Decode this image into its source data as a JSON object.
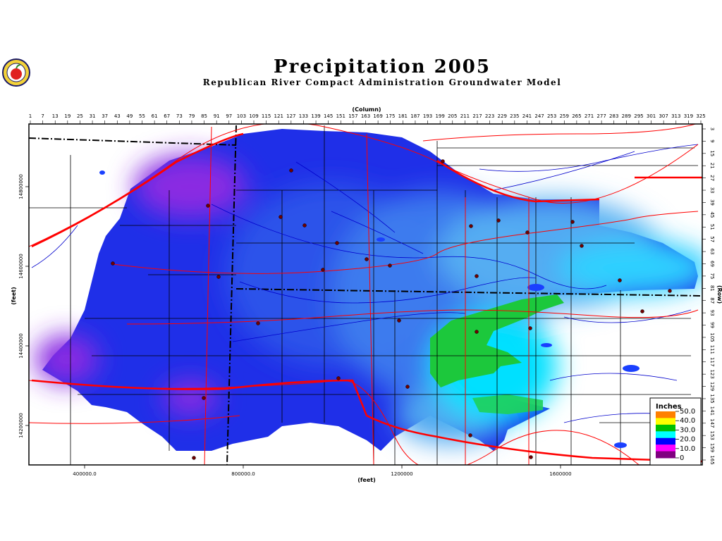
{
  "title": "Precipitation 2005",
  "subtitle": "Republican River Compact Administration Groundwater Model",
  "axes": {
    "column_label": "(Column)",
    "row_label": "(Row)",
    "x_feet_label": "(feet)",
    "y_feet_label": "(feet)",
    "column_ticks": [
      "1",
      "7",
      "13",
      "19",
      "25",
      "31",
      "37",
      "43",
      "49",
      "55",
      "61",
      "67",
      "73",
      "79",
      "85",
      "91",
      "97",
      "103",
      "109",
      "115",
      "121",
      "127",
      "133",
      "139",
      "145",
      "151",
      "157",
      "163",
      "169",
      "175",
      "181",
      "187",
      "193",
      "199",
      "205",
      "211",
      "217",
      "223",
      "229",
      "235",
      "241",
      "247",
      "253",
      "259",
      "265",
      "271",
      "277",
      "283",
      "289",
      "295",
      "301",
      "307",
      "313",
      "319",
      "325"
    ],
    "row_ticks": [
      "3",
      "9",
      "15",
      "21",
      "27",
      "33",
      "39",
      "45",
      "51",
      "57",
      "63",
      "69",
      "75",
      "81",
      "87",
      "93",
      "99",
      "105",
      "111",
      "117",
      "123",
      "129",
      "135",
      "141",
      "147",
      "153",
      "159",
      "165"
    ],
    "x_feet_ticks": [
      "400000.0",
      "800000.0",
      "1200000",
      "1600000"
    ],
    "y_feet_ticks": [
      "14800000",
      "14600000",
      "14400000",
      "14200000"
    ]
  },
  "legend": {
    "title": "Inches",
    "labels": [
      "50.0",
      "40.0",
      "30.0",
      "20.0",
      "10.0",
      "0"
    ],
    "colors": [
      "#ff8000",
      "#ffff00",
      "#00c000",
      "#00ffff",
      "#0000ff",
      "#ff00ff",
      "#800080"
    ]
  },
  "colors": {
    "violet": "#8a2be2",
    "deep_blue": "#1f2fe8",
    "mid_blue": "#3f7fee",
    "light_blue": "#55b0f2",
    "cyan": "#00e0ff",
    "green": "#1cc83c",
    "roads": "#ff0000",
    "rivers": "#0000cc",
    "boundaries": "#000000"
  },
  "logo": {
    "icon": "apple-logo-icon"
  }
}
